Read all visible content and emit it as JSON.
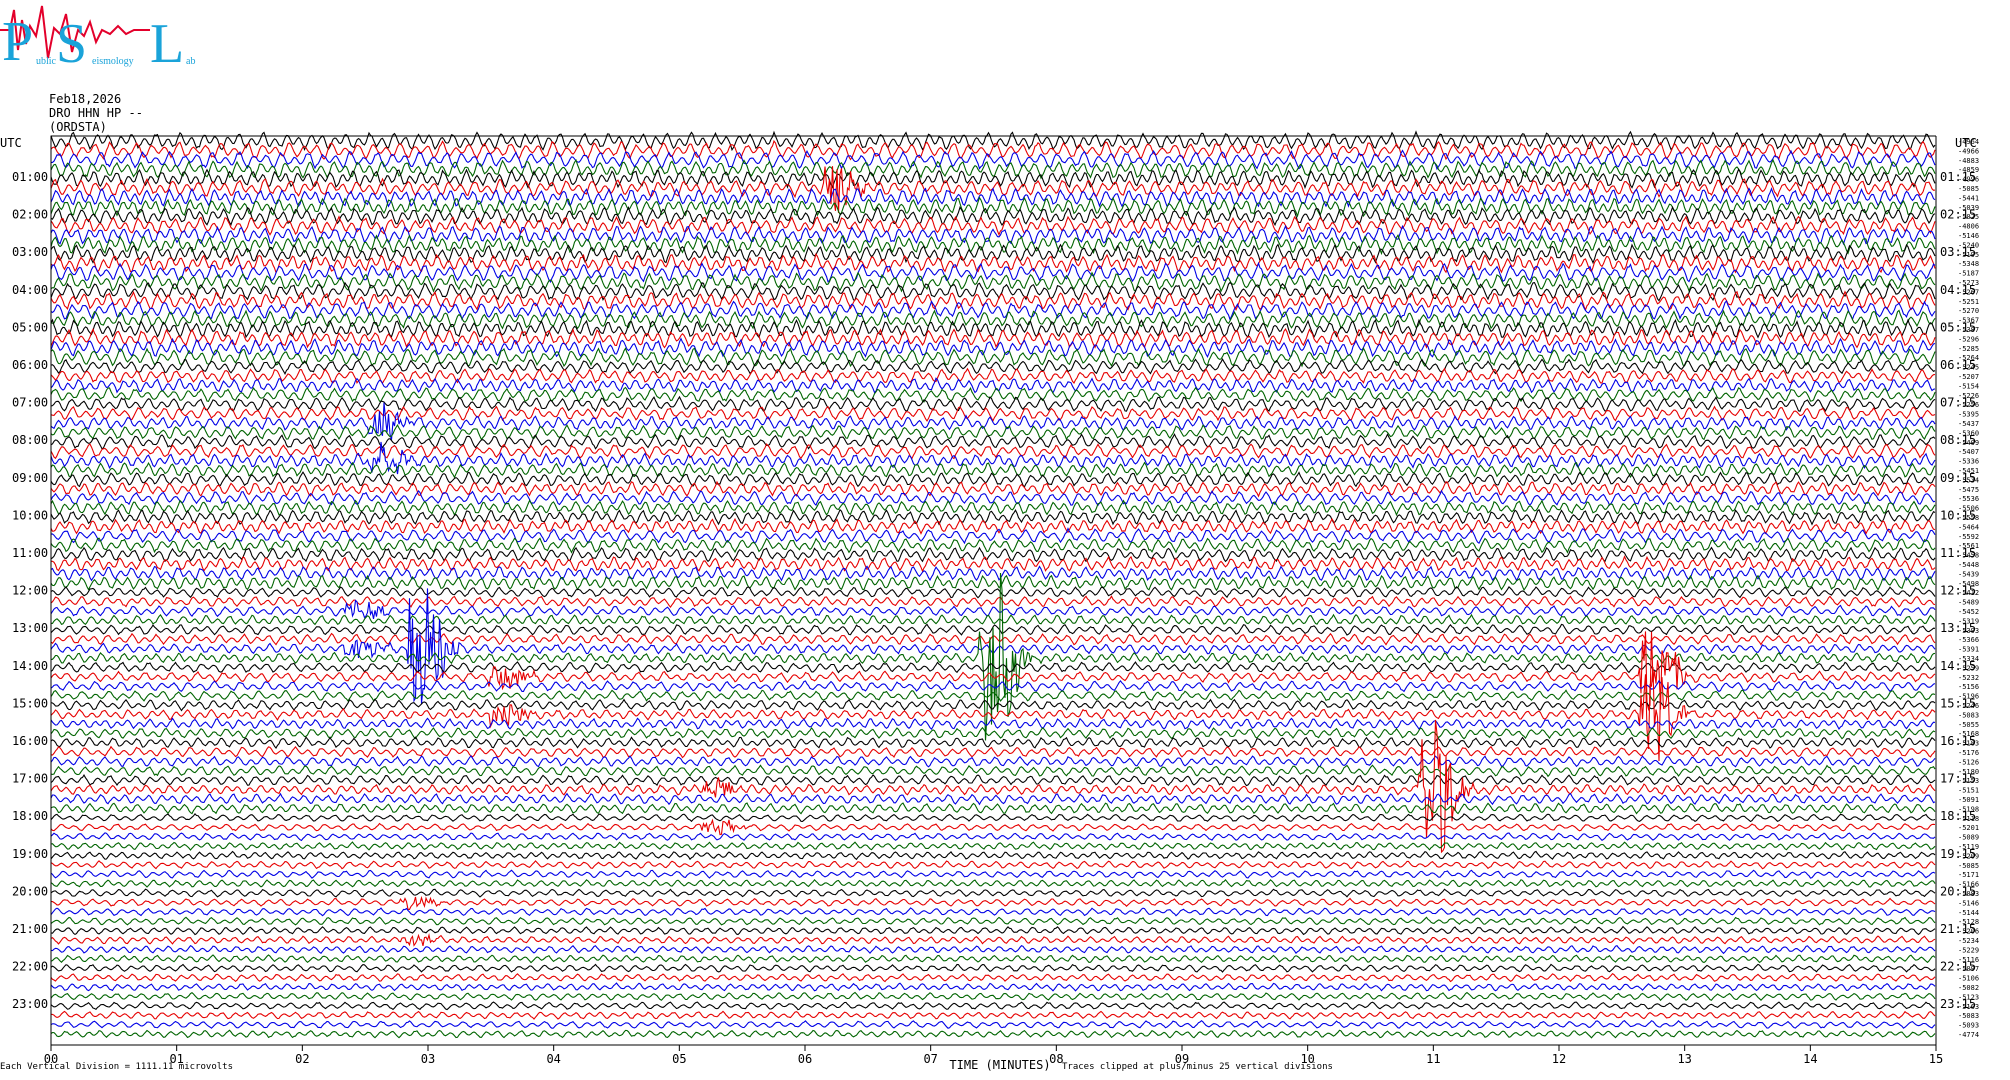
{
  "logo": {
    "letters": [
      "P",
      "S",
      "L"
    ],
    "small_words": [
      "ublic",
      "eismology",
      "ab"
    ],
    "colors": {
      "letters": "#1aa3d9",
      "wave": "#e3002b"
    }
  },
  "header": {
    "date": "Feb18,2026",
    "station": "DRO HHN HP --",
    "network": "(ORDSTA)"
  },
  "axes": {
    "left_title": "UTC",
    "right_title": "UTC",
    "left_labels": [
      "01:00",
      "02:00",
      "03:00",
      "04:00",
      "05:00",
      "06:00",
      "07:00",
      "08:00",
      "09:00",
      "10:00",
      "11:00",
      "12:00",
      "13:00",
      "14:00",
      "15:00",
      "16:00",
      "17:00",
      "18:00",
      "19:00",
      "20:00",
      "21:00",
      "22:00",
      "23:00"
    ],
    "right_labels": [
      "01:15",
      "02:15",
      "03:15",
      "04:15",
      "05:15",
      "06:15",
      "07:15",
      "08:15",
      "09:15",
      "10:15",
      "11:15",
      "12:15",
      "13:15",
      "14:15",
      "15:15",
      "16:15",
      "17:15",
      "18:15",
      "19:15",
      "20:15",
      "21:15",
      "22:15",
      "23:15"
    ],
    "x_ticks": [
      "00",
      "01",
      "02",
      "03",
      "04",
      "05",
      "06",
      "07",
      "08",
      "09",
      "10",
      "11",
      "12",
      "13",
      "14",
      "15"
    ],
    "xlabel": "TIME (MINUTES)"
  },
  "footer": {
    "left_note": "Each Vertical Division = 1111.11 microvolts",
    "clip_note": "Traces clipped at plus/minus 25 vertical divisions"
  },
  "chart_data": {
    "type": "line",
    "title": "",
    "xlabel": "TIME (MINUTES)",
    "ylabel": "UTC",
    "xlim": [
      0,
      15
    ],
    "traces_per_hour": 4,
    "hours": 24,
    "trace_colors": [
      "#000000",
      "#e60000",
      "#0000e6",
      "#006400"
    ],
    "trace_offsets": [
      "-4964",
      "-4966",
      "-4883",
      "-4859",
      "-4996",
      "-5085",
      "-5441",
      "-5039",
      "-5025",
      "-4806",
      "-5146",
      "-5240",
      "-5195",
      "-5348",
      "-5187",
      "-5273",
      "-5267",
      "-5251",
      "-5270",
      "-5367",
      "-5387",
      "-5296",
      "-5285",
      "-5264",
      "-5245",
      "-5207",
      "-5154",
      "-5226",
      "-5256",
      "-5395",
      "-5437",
      "-5360",
      "-5409",
      "-5407",
      "-5336",
      "-5451",
      "-5534",
      "-5475",
      "-5536",
      "-5506",
      "-5558",
      "-5464",
      "-5592",
      "-5561",
      "-5458",
      "-5448",
      "-5439",
      "-5498",
      "-5412",
      "-5489",
      "-5452",
      "-5319",
      "-5393",
      "-5366",
      "-5391",
      "-5334",
      "-5259",
      "-5232",
      "-5156",
      "-5196",
      "-5246",
      "-5083",
      "-5055",
      "-5168",
      "-5183",
      "-5176",
      "-5126",
      "-5180",
      "-5153",
      "-5151",
      "-5091",
      "-5198",
      "-5118",
      "-5201",
      "-5089",
      "-5119",
      "-5209",
      "-5085",
      "-5171",
      "-5166",
      "-5083",
      "-5146",
      "-5144",
      "-5128",
      "-5206",
      "-5234",
      "-5229",
      "-5116",
      "-5097",
      "-5106",
      "-5082",
      "-5123",
      "-5163",
      "-5083",
      "-5093",
      "-4774"
    ],
    "events": [
      {
        "hour": 7.75,
        "minute": 2.65,
        "color": "#0000e6",
        "amplitude": 6
      },
      {
        "hour": 13.5,
        "minute": 2.95,
        "color": "#0000e6",
        "amplitude": 8
      },
      {
        "hour": 13.25,
        "minute": 2.45,
        "color": "#0000e6",
        "amplitude": 4
      },
      {
        "hour": 14.75,
        "minute": 3.6,
        "color": "#e60000",
        "amplitude": 5
      },
      {
        "hour": 13.75,
        "minute": 7.5,
        "color": "#006400",
        "amplitude": 11
      },
      {
        "hour": 17.25,
        "minute": 11.0,
        "color": "#e60000",
        "amplitude": 9
      },
      {
        "hour": 15.0,
        "minute": 12.75,
        "color": "#e60000",
        "amplitude": 19
      },
      {
        "hour": 1.25,
        "minute": 6.25,
        "color": "#e60000",
        "amplitude": 3
      },
      {
        "hour": 21.0,
        "minute": 2.9,
        "color": "#e60000",
        "amplitude": 2
      },
      {
        "hour": 17.5,
        "minute": 5.3,
        "color": "#e60000",
        "amplitude": 3
      }
    ]
  }
}
